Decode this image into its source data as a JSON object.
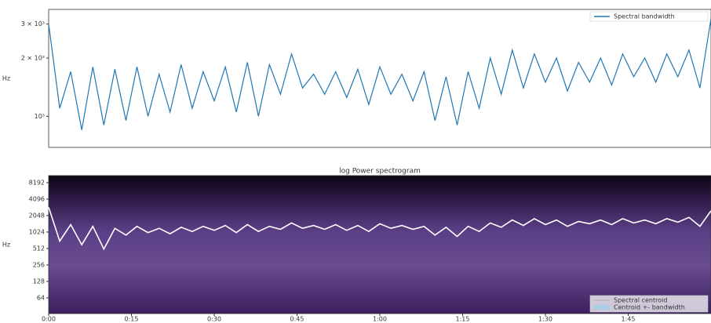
{
  "chart_data": [
    {
      "type": "line",
      "ylabel": "Hz",
      "ylog": true,
      "xlim": [
        0,
        120
      ],
      "ylim": [
        690,
        3570
      ],
      "yticks": [
        {
          "value": 1000,
          "label": "10³"
        },
        {
          "value": 2000,
          "label": "2 × 10³"
        },
        {
          "value": 3000,
          "label": "3 × 10³"
        }
      ],
      "legend": "upper right",
      "x": [
        0,
        2,
        4,
        6,
        8,
        10,
        12,
        14,
        16,
        18,
        20,
        22,
        24,
        26,
        28,
        30,
        32,
        34,
        36,
        38,
        40,
        42,
        44,
        46,
        48,
        50,
        52,
        54,
        56,
        58,
        60,
        62,
        64,
        66,
        68,
        70,
        72,
        74,
        76,
        78,
        80,
        82,
        84,
        86,
        88,
        90,
        92,
        94,
        96,
        98,
        100,
        102,
        104,
        106,
        108,
        110,
        112,
        114,
        116,
        118,
        120
      ],
      "series": [
        {
          "name": "Spectral bandwidth",
          "color": "#1f77b4",
          "values": [
            3000,
            1100,
            1700,
            850,
            1800,
            900,
            1750,
            950,
            1800,
            1000,
            1650,
            1050,
            1850,
            1100,
            1700,
            1200,
            1800,
            1050,
            1900,
            1000,
            1850,
            1300,
            2100,
            1400,
            1650,
            1300,
            1700,
            1250,
            1750,
            1150,
            1800,
            1300,
            1650,
            1200,
            1700,
            950,
            1600,
            900,
            1700,
            1100,
            2000,
            1300,
            2200,
            1400,
            2100,
            1500,
            2000,
            1350,
            1900,
            1500,
            2000,
            1450,
            2100,
            1600,
            2000,
            1500,
            2100,
            1600,
            2200,
            1400,
            3200
          ]
        }
      ]
    },
    {
      "type": "line",
      "title": "log Power spectrogram",
      "ylabel": "Hz",
      "ylog": true,
      "xlim": [
        0,
        120
      ],
      "ylim": [
        33,
        11025
      ],
      "yticks": [
        64,
        128,
        256,
        512,
        1024,
        2048,
        4096,
        8192
      ],
      "xticks": [
        {
          "value": 0,
          "label": "0:00"
        },
        {
          "value": 15,
          "label": "0:15"
        },
        {
          "value": 30,
          "label": "0:30"
        },
        {
          "value": 45,
          "label": "0:45"
        },
        {
          "value": 60,
          "label": "1:00"
        },
        {
          "value": 75,
          "label": "1:15"
        },
        {
          "value": 90,
          "label": "1:30"
        },
        {
          "value": 105,
          "label": "1:45"
        }
      ],
      "legend": "lower right",
      "band_label": "Centroid +- bandwidth",
      "band_color": "#a9cfe3",
      "x": [
        0,
        2,
        4,
        6,
        8,
        10,
        12,
        14,
        16,
        18,
        20,
        22,
        24,
        26,
        28,
        30,
        32,
        34,
        36,
        38,
        40,
        42,
        44,
        46,
        48,
        50,
        52,
        54,
        56,
        58,
        60,
        62,
        64,
        66,
        68,
        70,
        72,
        74,
        76,
        78,
        80,
        82,
        84,
        86,
        88,
        90,
        92,
        94,
        96,
        98,
        100,
        102,
        104,
        106,
        108,
        110,
        112,
        114,
        116,
        118,
        120
      ],
      "series": [
        {
          "name": "Spectral centroid",
          "color": "#ffffff",
          "values": [
            2900,
            700,
            1400,
            600,
            1300,
            500,
            1200,
            900,
            1300,
            1000,
            1200,
            950,
            1250,
            1050,
            1300,
            1100,
            1350,
            1000,
            1400,
            1050,
            1300,
            1150,
            1500,
            1200,
            1350,
            1150,
            1400,
            1100,
            1350,
            1050,
            1450,
            1200,
            1350,
            1150,
            1300,
            900,
            1250,
            850,
            1300,
            1050,
            1500,
            1250,
            1700,
            1350,
            1800,
            1400,
            1700,
            1300,
            1600,
            1450,
            1700,
            1400,
            1800,
            1500,
            1700,
            1450,
            1800,
            1550,
            1900,
            1300,
            2500
          ]
        }
      ]
    }
  ]
}
